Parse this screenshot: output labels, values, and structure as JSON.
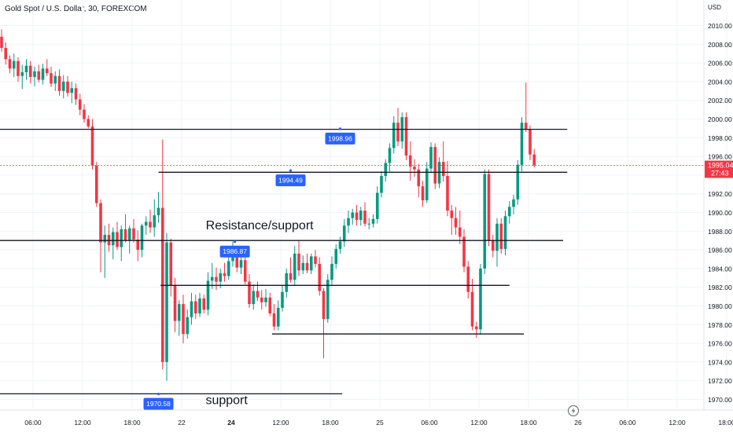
{
  "header": {
    "title": "Gold Spot / U.S. Dollar, 30, FOREXCOM"
  },
  "price_axis": {
    "currency": "USD"
  },
  "current_price": {
    "value": "1995.04",
    "countdown": "27:43",
    "color": "#f23645"
  },
  "colors": {
    "up": "#089981",
    "down": "#f23645",
    "label_bg": "#2962ff"
  },
  "icons": {
    "replay": "lightning-icon"
  },
  "chart_data": {
    "type": "candlestick",
    "title": "Gold Spot / U.S. Dollar, 30, FOREXCOM",
    "ylabel": "USD",
    "ylim": [
      1969,
      2012
    ],
    "yticks": [
      "1970.00",
      "1972.00",
      "1974.00",
      "1976.00",
      "1978.00",
      "1980.00",
      "1982.00",
      "1984.00",
      "1986.00",
      "1988.00",
      "1990.00",
      "1992.00",
      "1994.00",
      "1996.00",
      "1998.00",
      "2000.00",
      "2002.00",
      "2004.00",
      "2006.00",
      "2008.00",
      "2010.00"
    ],
    "xticks": [
      "06:00",
      "12:00",
      "18:00",
      "22",
      "24",
      "12:00",
      "18:00",
      "25",
      "06:00",
      "12:00",
      "18:00",
      "26",
      "06:00",
      "12:00",
      "18:00"
    ],
    "bars_per_tick": 12,
    "candles": [
      [
        2008.8,
        2009.6,
        2007.2,
        2007.6
      ],
      [
        2007.6,
        2008.2,
        2005.8,
        2006.4
      ],
      [
        2006.4,
        2006.8,
        2004.9,
        2005.4
      ],
      [
        2005.4,
        2007.0,
        2004.5,
        2006.2
      ],
      [
        2006.2,
        2006.6,
        2004.0,
        2004.6
      ],
      [
        2004.6,
        2005.8,
        2003.2,
        2005.0
      ],
      [
        2005.0,
        2006.4,
        2004.2,
        2005.7
      ],
      [
        2005.7,
        2006.2,
        2003.8,
        2004.5
      ],
      [
        2004.5,
        2005.6,
        2003.5,
        2005.1
      ],
      [
        2005.1,
        2005.8,
        2003.9,
        2004.2
      ],
      [
        2004.2,
        2005.9,
        2003.7,
        2005.4
      ],
      [
        2005.4,
        2006.4,
        2004.6,
        2004.9
      ],
      [
        2004.9,
        2005.6,
        2003.4,
        2003.8
      ],
      [
        2003.8,
        2005.1,
        2003.0,
        2004.6
      ],
      [
        2004.6,
        2005.3,
        2002.5,
        2003.0
      ],
      [
        2003.0,
        2004.7,
        2002.2,
        2004.0
      ],
      [
        2004.0,
        2004.6,
        2002.4,
        2002.8
      ],
      [
        2002.8,
        2004.0,
        2001.7,
        2003.3
      ],
      [
        2003.3,
        2003.8,
        2001.5,
        2002.1
      ],
      [
        2002.1,
        2002.7,
        2000.4,
        2001.0
      ],
      [
        2001.0,
        2001.6,
        1999.6,
        2000.0
      ],
      [
        2000.0,
        2000.4,
        1999.0,
        1999.2
      ],
      [
        1999.2,
        2000.0,
        1994.6,
        1995.0
      ],
      [
        1995.0,
        1995.4,
        1990.6,
        1991.0
      ],
      [
        1991.0,
        1991.4,
        1983.6,
        1986.8
      ],
      [
        1986.8,
        1988.6,
        1983.0,
        1987.6
      ],
      [
        1987.6,
        1988.8,
        1985.8,
        1986.5
      ],
      [
        1986.5,
        1988.4,
        1985.0,
        1987.9
      ],
      [
        1987.9,
        1989.0,
        1986.0,
        1986.3
      ],
      [
        1986.3,
        1988.6,
        1984.8,
        1988.2
      ],
      [
        1988.2,
        1989.8,
        1986.8,
        1987.0
      ],
      [
        1987.0,
        1988.6,
        1985.6,
        1988.3
      ],
      [
        1988.3,
        1989.3,
        1986.8,
        1987.1
      ],
      [
        1987.1,
        1988.1,
        1984.8,
        1986.0
      ],
      [
        1986.0,
        1988.8,
        1985.2,
        1988.6
      ],
      [
        1988.6,
        1989.6,
        1987.6,
        1989.0
      ],
      [
        1989.0,
        1990.3,
        1987.8,
        1988.4
      ],
      [
        1988.4,
        1991.4,
        1987.4,
        1989.7
      ],
      [
        1989.7,
        1992.2,
        1988.9,
        1990.5
      ],
      [
        1990.5,
        1997.8,
        1973.2,
        1974.0
      ],
      [
        1974.0,
        1987.8,
        1972.0,
        1986.8
      ],
      [
        1986.8,
        1987.2,
        1981.0,
        1982.2
      ],
      [
        1982.2,
        1983.0,
        1977.2,
        1978.4
      ],
      [
        1978.4,
        1980.6,
        1976.8,
        1980.2
      ],
      [
        1980.2,
        1981.2,
        1976.0,
        1977.0
      ],
      [
        1977.0,
        1979.6,
        1976.5,
        1978.8
      ],
      [
        1978.8,
        1981.4,
        1978.0,
        1980.5
      ],
      [
        1980.5,
        1981.2,
        1978.6,
        1979.2
      ],
      [
        1979.2,
        1981.4,
        1978.8,
        1980.8
      ],
      [
        1980.8,
        1981.2,
        1979.2,
        1979.6
      ],
      [
        1979.6,
        1983.6,
        1979.0,
        1982.7
      ],
      [
        1982.7,
        1984.6,
        1981.8,
        1983.1
      ],
      [
        1983.1,
        1984.1,
        1981.7,
        1982.6
      ],
      [
        1982.6,
        1984.0,
        1981.9,
        1983.5
      ],
      [
        1983.5,
        1984.6,
        1982.6,
        1983.2
      ],
      [
        1983.2,
        1985.5,
        1982.8,
        1984.8
      ],
      [
        1984.8,
        1986.9,
        1984.2,
        1985.4
      ],
      [
        1985.4,
        1985.8,
        1983.6,
        1984.1
      ],
      [
        1984.1,
        1985.5,
        1983.4,
        1984.9
      ],
      [
        1984.9,
        1985.5,
        1982.3,
        1982.6
      ],
      [
        1982.6,
        1983.4,
        1979.8,
        1980.2
      ],
      [
        1980.2,
        1982.3,
        1979.6,
        1981.6
      ],
      [
        1981.6,
        1982.6,
        1980.5,
        1980.9
      ],
      [
        1980.9,
        1981.7,
        1979.6,
        1980.4
      ],
      [
        1980.4,
        1981.8,
        1979.9,
        1980.9
      ],
      [
        1980.9,
        1981.4,
        1978.9,
        1979.2
      ],
      [
        1979.2,
        1980.2,
        1977.4,
        1977.8
      ],
      [
        1977.8,
        1980.6,
        1977.4,
        1979.8
      ],
      [
        1979.8,
        1982.2,
        1979.4,
        1981.5
      ],
      [
        1981.5,
        1984.0,
        1980.9,
        1983.5
      ],
      [
        1983.5,
        1985.2,
        1982.5,
        1982.8
      ],
      [
        1982.8,
        1986.4,
        1982.2,
        1985.6
      ],
      [
        1985.6,
        1987.0,
        1983.2,
        1983.8
      ],
      [
        1983.8,
        1985.4,
        1983.4,
        1984.6
      ],
      [
        1984.6,
        1985.6,
        1983.5,
        1983.8
      ],
      [
        1983.8,
        1985.6,
        1983.4,
        1985.3
      ],
      [
        1985.3,
        1986.0,
        1984.1,
        1984.5
      ],
      [
        1984.5,
        1985.2,
        1981.1,
        1981.6
      ],
      [
        1981.6,
        1981.9,
        1974.4,
        1978.6
      ],
      [
        1978.6,
        1983.4,
        1978.2,
        1982.8
      ],
      [
        1982.8,
        1985.3,
        1982.2,
        1984.5
      ],
      [
        1984.5,
        1986.6,
        1984.0,
        1986.1
      ],
      [
        1986.1,
        1987.4,
        1985.6,
        1986.9
      ],
      [
        1986.9,
        1989.3,
        1986.3,
        1988.6
      ],
      [
        1988.6,
        1990.2,
        1987.8,
        1989.4
      ],
      [
        1989.4,
        1990.4,
        1988.7,
        1990.0
      ],
      [
        1990.0,
        1990.8,
        1988.6,
        1989.2
      ],
      [
        1989.2,
        1990.6,
        1988.6,
        1990.2
      ],
      [
        1990.2,
        1991.1,
        1988.5,
        1988.8
      ],
      [
        1988.8,
        1989.4,
        1988.2,
        1988.8
      ],
      [
        1988.8,
        1989.8,
        1988.4,
        1989.3
      ],
      [
        1989.3,
        1992.8,
        1988.8,
        1992.1
      ],
      [
        1992.1,
        1994.4,
        1991.6,
        1993.9
      ],
      [
        1993.9,
        1995.7,
        1993.3,
        1995.3
      ],
      [
        1995.3,
        1997.4,
        1994.4,
        1996.9
      ],
      [
        1996.9,
        2000.3,
        1996.3,
        1999.6
      ],
      [
        1999.6,
        2001.2,
        1997.1,
        1997.6
      ],
      [
        1997.6,
        2000.7,
        1996.8,
        2000.2
      ],
      [
        2000.2,
        2000.7,
        1995.6,
        1996.1
      ],
      [
        1996.1,
        1997.6,
        1993.4,
        1994.9
      ],
      [
        1994.9,
        1995.7,
        1993.8,
        1994.6
      ],
      [
        1994.6,
        1995.2,
        1991.6,
        1992.8
      ],
      [
        1992.8,
        1993.4,
        1990.6,
        1991.3
      ],
      [
        1991.3,
        1995.4,
        1991.0,
        1994.7
      ],
      [
        1994.7,
        1997.5,
        1994.2,
        1997.0
      ],
      [
        1997.0,
        1997.4,
        1992.5,
        1993.1
      ],
      [
        1993.1,
        1995.9,
        1992.6,
        1995.4
      ],
      [
        1995.4,
        1997.6,
        1993.3,
        1993.9
      ],
      [
        1993.9,
        1995.5,
        1989.6,
        1990.2
      ],
      [
        1990.2,
        1990.8,
        1987.6,
        1989.4
      ],
      [
        1989.4,
        1990.6,
        1987.6,
        1988.4
      ],
      [
        1988.4,
        1990.2,
        1986.6,
        1987.4
      ],
      [
        1987.4,
        1988.2,
        1983.6,
        1984.2
      ],
      [
        1984.2,
        1984.8,
        1980.8,
        1981.5
      ],
      [
        1981.5,
        1982.9,
        1977.4,
        1977.8
      ],
      [
        1977.8,
        1978.3,
        1976.6,
        1977.5
      ],
      [
        1977.5,
        1984.5,
        1976.9,
        1984.0
      ],
      [
        1984.0,
        1994.6,
        1983.4,
        1994.1
      ],
      [
        1994.1,
        1994.6,
        1986.4,
        1987.0
      ],
      [
        1987.0,
        1987.6,
        1985.2,
        1985.9
      ],
      [
        1985.9,
        1989.4,
        1984.2,
        1988.8
      ],
      [
        1988.8,
        1989.4,
        1985.6,
        1986.1
      ],
      [
        1986.1,
        1990.2,
        1985.4,
        1989.6
      ],
      [
        1989.6,
        1991.2,
        1988.8,
        1990.6
      ],
      [
        1990.6,
        1991.9,
        1989.8,
        1991.4
      ],
      [
        1991.4,
        1995.6,
        1990.8,
        1995.1
      ],
      [
        1995.1,
        2000.2,
        1994.4,
        1999.6
      ],
      [
        1999.6,
        2003.9,
        1998.6,
        1998.9
      ],
      [
        1998.9,
        1999.3,
        1995.6,
        1996.2
      ],
      [
        1996.2,
        1996.8,
        1994.8,
        1995.04
      ]
    ]
  },
  "levels": [
    {
      "name": "level-1998.96",
      "y": 1998.9,
      "from_bar": -1,
      "to_bar": 137
    },
    {
      "name": "level-1994.49",
      "y": 1994.3,
      "from_bar": 38,
      "to_bar": 137
    },
    {
      "name": "level-1986.87",
      "y": 1987.0,
      "from_bar": -1,
      "to_bar": 136
    },
    {
      "name": "level-1982.2",
      "y": 1982.2,
      "from_bar": 38.5,
      "to_bar": 123
    },
    {
      "name": "level-1977",
      "y": 1977.0,
      "from_bar": 65.5,
      "to_bar": 126.5
    },
    {
      "name": "level-1970.58",
      "y": 1970.6,
      "from_bar": -1,
      "to_bar": 82.5
    }
  ],
  "price_labels": [
    {
      "text": "1998.96",
      "bar": 82,
      "y": 1998.96
    },
    {
      "text": "1994.49",
      "bar": 70,
      "y": 1994.49
    },
    {
      "text": "1986.87",
      "bar": 56.5,
      "y": 1986.87
    },
    {
      "text": "1970.58",
      "bar": 38,
      "y": 1970.58
    }
  ],
  "annotations": [
    {
      "text": "Resistance/support",
      "bar": 62.5,
      "y": 1988.2
    },
    {
      "text": "support",
      "bar": 54.5,
      "y": 1969.5
    }
  ]
}
